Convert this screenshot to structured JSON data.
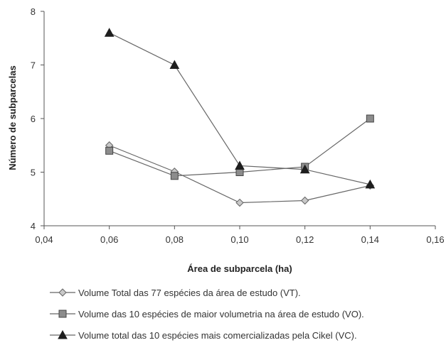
{
  "chart_data": {
    "type": "line",
    "title": "",
    "xlabel": "Área de subparcela (ha)",
    "ylabel": "Número de subparcelas",
    "xlim": [
      0.04,
      0.16
    ],
    "ylim": [
      4,
      8
    ],
    "xticks": [
      0.04,
      0.06,
      0.08,
      0.1,
      0.12,
      0.14,
      0.16
    ],
    "xtick_labels": [
      "0,04",
      "0,06",
      "0,08",
      "0,10",
      "0,12",
      "0,14",
      "0,16"
    ],
    "yticks": [
      4,
      5,
      6,
      7,
      8
    ],
    "ytick_labels": [
      "4",
      "5",
      "6",
      "7",
      "8"
    ],
    "grid": false,
    "legend_position": "bottom",
    "x": [
      0.06,
      0.08,
      0.1,
      0.12,
      0.14
    ],
    "series": [
      {
        "name": "Volume Total das 77 espécies da área de estudo (VT).",
        "marker": "diamond",
        "marker_color": "#c8c8c8",
        "values": [
          5.5,
          5.01,
          4.43,
          4.47,
          4.75
        ]
      },
      {
        "name": "Volume das 10 espécies de maior volumetria na área de estudo (VO).",
        "marker": "square",
        "marker_color": "#8c8c8c",
        "values": [
          5.4,
          4.93,
          5.0,
          5.1,
          6.0
        ]
      },
      {
        "name": "Volume total das 10 espécies mais comercializadas pela Cikel (VC).",
        "marker": "triangle",
        "marker_color": "#1e1e1e",
        "values": [
          7.6,
          7.0,
          5.12,
          5.05,
          4.77
        ]
      }
    ]
  }
}
